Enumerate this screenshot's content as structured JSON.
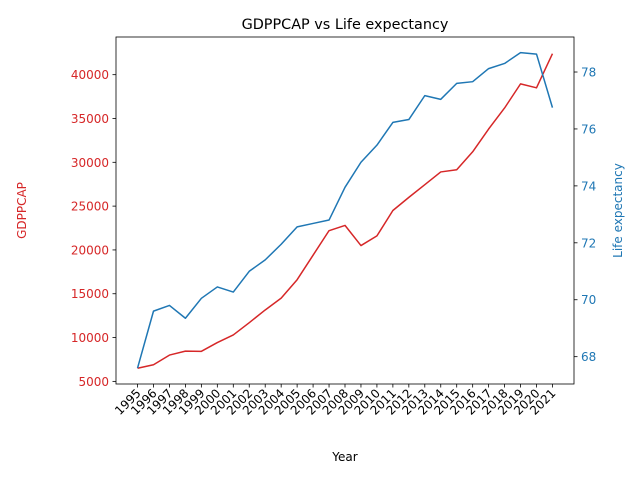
{
  "chart_data": {
    "type": "line",
    "title": "GDPPCAP vs Life expectancy",
    "xlabel": "Year",
    "x": [
      "1995",
      "1996",
      "1997",
      "1998",
      "1999",
      "2000",
      "2001",
      "2002",
      "2003",
      "2004",
      "2005",
      "2006",
      "2007",
      "2008",
      "2009",
      "2010",
      "2011",
      "2012",
      "2013",
      "2014",
      "2015",
      "2016",
      "2017",
      "2018",
      "2019",
      "2020",
      "2021"
    ],
    "series": [
      {
        "name": "GDPPCAP",
        "axis": "left",
        "color": "#d62728",
        "values": [
          6500,
          6900,
          8000,
          8450,
          8430,
          9430,
          10300,
          11700,
          13150,
          14500,
          16600,
          19400,
          22200,
          22800,
          20500,
          21600,
          24500,
          26000,
          27450,
          28900,
          29150,
          31200,
          33800,
          36200,
          38950,
          38500,
          42400
        ]
      },
      {
        "name": "Life expectancy",
        "axis": "right",
        "color": "#1f77b4",
        "values": [
          67.6,
          69.6,
          69.8,
          69.35,
          70.05,
          70.45,
          70.27,
          71.0,
          71.4,
          71.95,
          72.56,
          72.68,
          72.8,
          73.95,
          74.83,
          75.43,
          76.23,
          76.33,
          77.17,
          77.04,
          77.6,
          77.66,
          78.12,
          78.3,
          78.68,
          78.63,
          76.75
        ]
      }
    ],
    "y_left": {
      "label": "GDPPCAP",
      "ticks": [
        "5000",
        "10000",
        "15000",
        "20000",
        "25000",
        "30000",
        "35000",
        "40000"
      ],
      "lim": [
        4700,
        44300
      ],
      "color": "#d62728"
    },
    "y_right": {
      "label": "Life expectancy",
      "ticks": [
        "68",
        "70",
        "72",
        "74",
        "76",
        "78"
      ],
      "lim": [
        67.04,
        79.23
      ],
      "color": "#1f77b4"
    },
    "grid": false,
    "legend": "none"
  }
}
